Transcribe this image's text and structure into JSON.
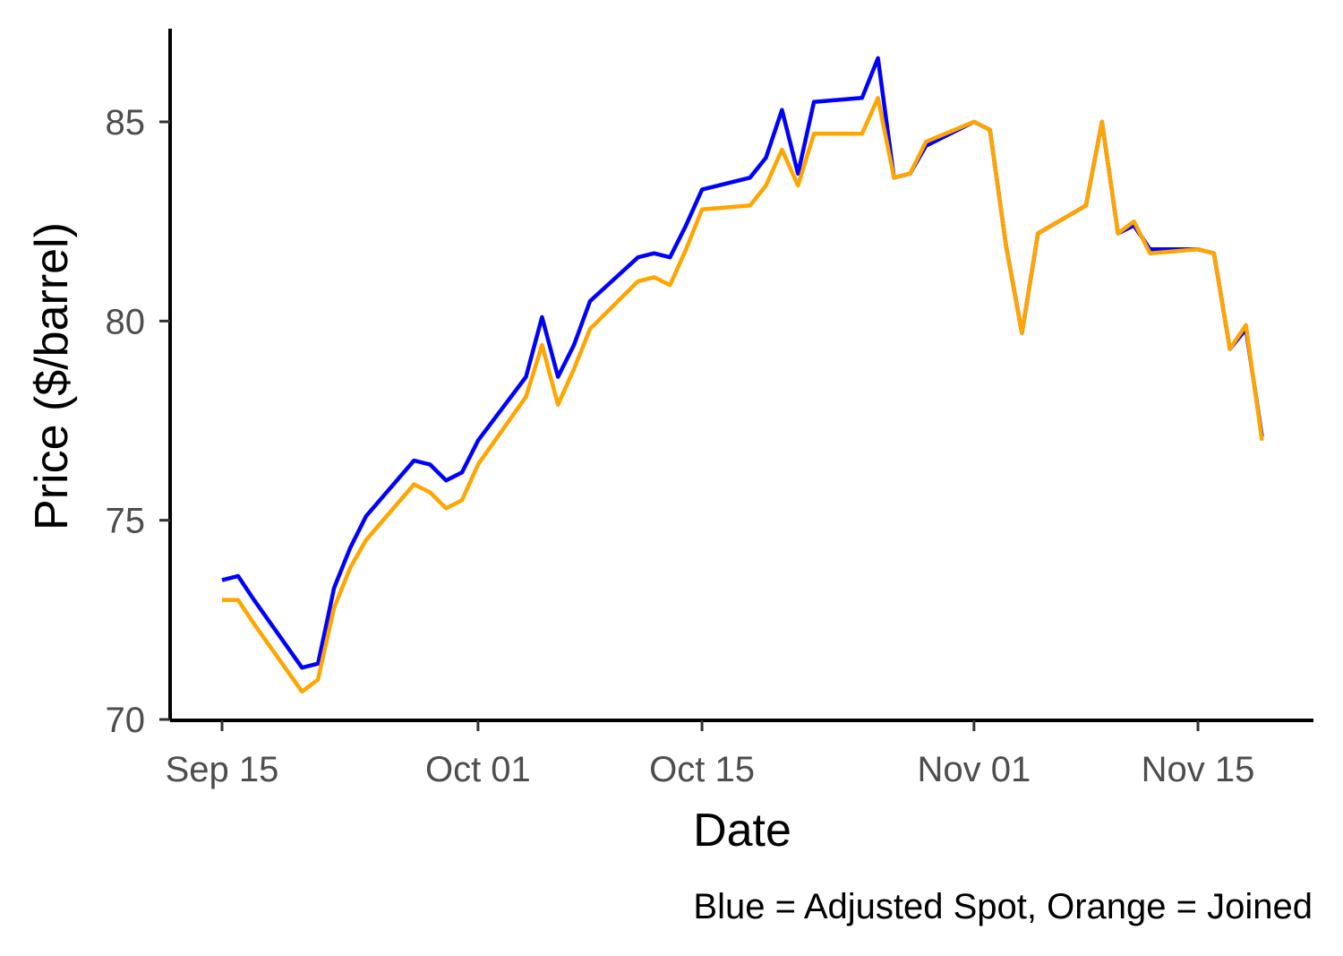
{
  "chart_data": {
    "type": "line",
    "title": "",
    "xlabel": "Date",
    "ylabel": "Price ($/barrel)",
    "caption": "Blue = Adjusted Spot, Orange = Joined",
    "xlim": [
      "2023-09-15",
      "2023-11-20"
    ],
    "ylim": [
      70,
      87
    ],
    "x_ticks": [
      {
        "date": "2023-09-15",
        "label": "Sep 15"
      },
      {
        "date": "2023-10-01",
        "label": "Oct 01"
      },
      {
        "date": "2023-10-15",
        "label": "Oct 15"
      },
      {
        "date": "2023-11-01",
        "label": "Nov 01"
      },
      {
        "date": "2023-11-15",
        "label": "Nov 15"
      }
    ],
    "y_ticks": [
      70,
      75,
      80,
      85
    ],
    "grid": false,
    "legend": "none",
    "series": [
      {
        "color": "#0000ff",
        "points": [
          [
            "2023-09-15",
            73.5
          ],
          [
            "2023-09-16",
            73.6
          ],
          [
            "2023-09-17",
            73.0
          ],
          [
            "2023-09-20",
            71.3
          ],
          [
            "2023-09-21",
            71.4
          ],
          [
            "2023-09-22",
            73.3
          ],
          [
            "2023-09-23",
            74.3
          ],
          [
            "2023-09-24",
            75.1
          ],
          [
            "2023-09-27",
            76.5
          ],
          [
            "2023-09-28",
            76.4
          ],
          [
            "2023-09-29",
            76.0
          ],
          [
            "2023-09-30",
            76.2
          ],
          [
            "2023-10-01",
            77.0
          ],
          [
            "2023-10-04",
            78.6
          ],
          [
            "2023-10-05",
            80.1
          ],
          [
            "2023-10-06",
            78.6
          ],
          [
            "2023-10-07",
            79.4
          ],
          [
            "2023-10-08",
            80.5
          ],
          [
            "2023-10-11",
            81.6
          ],
          [
            "2023-10-12",
            81.7
          ],
          [
            "2023-10-13",
            81.6
          ],
          [
            "2023-10-14",
            82.4
          ],
          [
            "2023-10-15",
            83.3
          ],
          [
            "2023-10-18",
            83.6
          ],
          [
            "2023-10-19",
            84.1
          ],
          [
            "2023-10-20",
            85.3
          ],
          [
            "2023-10-21",
            83.7
          ],
          [
            "2023-10-22",
            85.5
          ],
          [
            "2023-10-25",
            85.6
          ],
          [
            "2023-10-26",
            86.6
          ],
          [
            "2023-10-27",
            83.6
          ],
          [
            "2023-10-28",
            83.7
          ],
          [
            "2023-10-29",
            84.4
          ],
          [
            "2023-11-01",
            85.0
          ],
          [
            "2023-11-02",
            84.8
          ],
          [
            "2023-11-03",
            81.9
          ],
          [
            "2023-11-04",
            79.7
          ],
          [
            "2023-11-05",
            82.2
          ],
          [
            "2023-11-08",
            82.9
          ],
          [
            "2023-11-09",
            85.0
          ],
          [
            "2023-11-10",
            82.2
          ],
          [
            "2023-11-11",
            82.4
          ],
          [
            "2023-11-12",
            81.8
          ],
          [
            "2023-11-15",
            81.8
          ],
          [
            "2023-11-16",
            81.7
          ],
          [
            "2023-11-17",
            79.3
          ],
          [
            "2023-11-18",
            79.8
          ],
          [
            "2023-11-19",
            77.1
          ]
        ]
      },
      {
        "color": "#ffa500",
        "points": [
          [
            "2023-09-15",
            73.0
          ],
          [
            "2023-09-16",
            73.0
          ],
          [
            "2023-09-17",
            72.4
          ],
          [
            "2023-09-20",
            70.7
          ],
          [
            "2023-09-21",
            71.0
          ],
          [
            "2023-09-22",
            72.8
          ],
          [
            "2023-09-23",
            73.8
          ],
          [
            "2023-09-24",
            74.5
          ],
          [
            "2023-09-27",
            75.9
          ],
          [
            "2023-09-28",
            75.7
          ],
          [
            "2023-09-29",
            75.3
          ],
          [
            "2023-09-30",
            75.5
          ],
          [
            "2023-10-01",
            76.4
          ],
          [
            "2023-10-04",
            78.1
          ],
          [
            "2023-10-05",
            79.4
          ],
          [
            "2023-10-06",
            77.9
          ],
          [
            "2023-10-07",
            78.8
          ],
          [
            "2023-10-08",
            79.8
          ],
          [
            "2023-10-11",
            81.0
          ],
          [
            "2023-10-12",
            81.1
          ],
          [
            "2023-10-13",
            80.9
          ],
          [
            "2023-10-14",
            81.8
          ],
          [
            "2023-10-15",
            82.8
          ],
          [
            "2023-10-18",
            82.9
          ],
          [
            "2023-10-19",
            83.4
          ],
          [
            "2023-10-20",
            84.3
          ],
          [
            "2023-10-21",
            83.4
          ],
          [
            "2023-10-22",
            84.7
          ],
          [
            "2023-10-25",
            84.7
          ],
          [
            "2023-10-26",
            85.6
          ],
          [
            "2023-10-27",
            83.6
          ],
          [
            "2023-10-28",
            83.7
          ],
          [
            "2023-10-29",
            84.5
          ],
          [
            "2023-11-01",
            85.0
          ],
          [
            "2023-11-02",
            84.8
          ],
          [
            "2023-11-03",
            81.9
          ],
          [
            "2023-11-04",
            79.7
          ],
          [
            "2023-11-05",
            82.2
          ],
          [
            "2023-11-08",
            82.9
          ],
          [
            "2023-11-09",
            85.0
          ],
          [
            "2023-11-10",
            82.2
          ],
          [
            "2023-11-11",
            82.5
          ],
          [
            "2023-11-12",
            81.7
          ],
          [
            "2023-11-15",
            81.8
          ],
          [
            "2023-11-16",
            81.7
          ],
          [
            "2023-11-17",
            79.3
          ],
          [
            "2023-11-18",
            79.9
          ],
          [
            "2023-11-19",
            77.0
          ]
        ]
      }
    ]
  }
}
